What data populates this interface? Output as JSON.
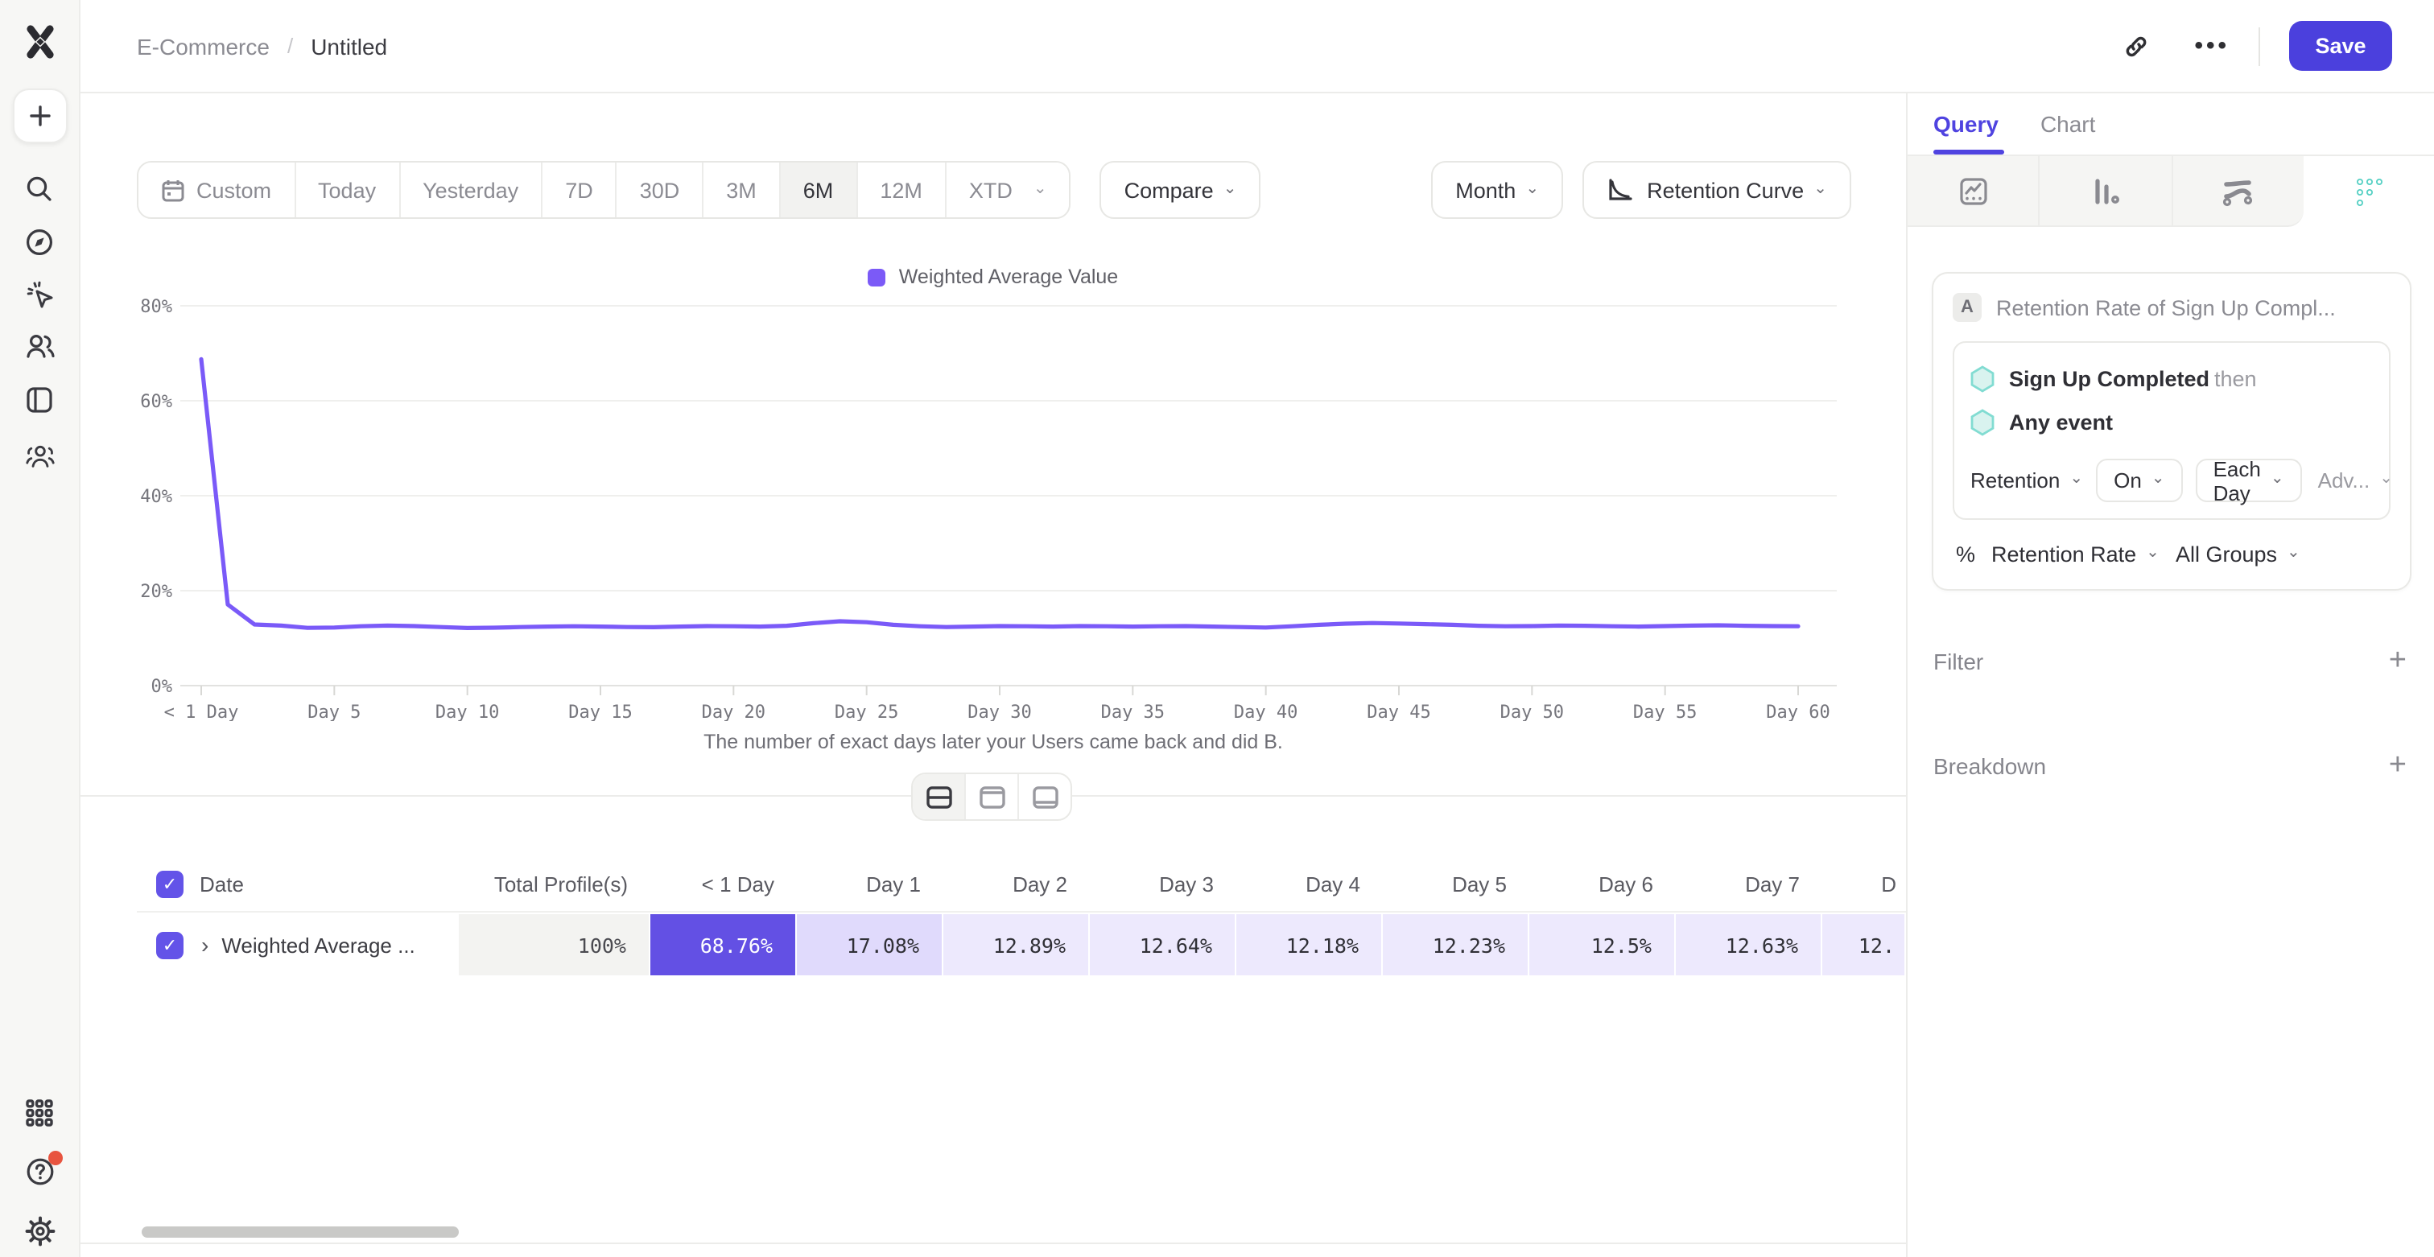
{
  "header": {
    "breadcrumb": {
      "root": "E-Commerce",
      "sep": "/",
      "leaf": "Untitled"
    },
    "save_label": "Save"
  },
  "toolbar": {
    "date_ranges": [
      "Custom",
      "Today",
      "Yesterday",
      "7D",
      "30D",
      "3M",
      "6M",
      "12M",
      "XTD"
    ],
    "selected_range": "6M",
    "compare_label": "Compare",
    "granularity_label": "Month",
    "chart_type_label": "Retention Curve"
  },
  "legend": {
    "label": "Weighted Average Value",
    "color": "#7b5af7"
  },
  "chart_data": {
    "type": "line",
    "series_name": "Weighted Average Value",
    "x_days": [
      0,
      1,
      2,
      3,
      4,
      5,
      6,
      7,
      8,
      9,
      10,
      11,
      12,
      13,
      14,
      15,
      16,
      17,
      18,
      19,
      20,
      21,
      22,
      23,
      24,
      25,
      26,
      27,
      28,
      29,
      30,
      31,
      32,
      33,
      34,
      35,
      36,
      37,
      38,
      39,
      40,
      41,
      42,
      43,
      44,
      45,
      46,
      47,
      48,
      49,
      50,
      51,
      52,
      53,
      54,
      55,
      56,
      57,
      58,
      59,
      60
    ],
    "values": [
      68.76,
      17.08,
      12.89,
      12.64,
      12.18,
      12.23,
      12.5,
      12.63,
      12.55,
      12.35,
      12.15,
      12.2,
      12.35,
      12.45,
      12.5,
      12.45,
      12.35,
      12.3,
      12.45,
      12.55,
      12.5,
      12.45,
      12.6,
      13.15,
      13.55,
      13.35,
      12.8,
      12.5,
      12.35,
      12.45,
      12.55,
      12.5,
      12.45,
      12.55,
      12.5,
      12.45,
      12.5,
      12.55,
      12.45,
      12.35,
      12.25,
      12.5,
      12.8,
      13.05,
      13.2,
      13.1,
      12.95,
      12.8,
      12.6,
      12.5,
      12.55,
      12.65,
      12.6,
      12.5,
      12.45,
      12.55,
      12.65,
      12.7,
      12.6,
      12.55,
      12.5
    ],
    "ylim": [
      0,
      80
    ],
    "yticks": [
      0,
      20,
      40,
      60,
      80
    ],
    "ytick_suffix": "%",
    "xtick_days": [
      0,
      5,
      10,
      15,
      20,
      25,
      30,
      35,
      40,
      45,
      50,
      55,
      60
    ],
    "xtick_labels": [
      "< 1 Day",
      "Day 5",
      "Day 10",
      "Day 15",
      "Day 20",
      "Day 25",
      "Day 30",
      "Day 35",
      "Day 40",
      "Day 45",
      "Day 50",
      "Day 55",
      "Day 60"
    ],
    "caption": "The number of exact days later your Users came back and did B.",
    "line_color": "#7a5af8",
    "grid": true,
    "legend_position": "top-center"
  },
  "table": {
    "headers": [
      "Date",
      "Total Profile(s)",
      "< 1 Day",
      "Day 1",
      "Day 2",
      "Day 3",
      "Day 4",
      "Day 5",
      "Day 6",
      "Day 7",
      "D"
    ],
    "row": {
      "label": "Weighted Average ...",
      "values": [
        "100%",
        "68.76%",
        "17.08%",
        "12.89%",
        "12.64%",
        "12.18%",
        "12.23%",
        "12.5%",
        "12.63%",
        "12."
      ]
    }
  },
  "layout_toggles": [
    "split-view",
    "chart-view",
    "table-view"
  ],
  "panel": {
    "tabs": {
      "active": "Query",
      "inactive": "Chart"
    },
    "report_types": [
      "insights",
      "funnels",
      "flows",
      "retention"
    ],
    "active_report_type": "retention",
    "query": {
      "step_badge": "A",
      "name": "Retention Rate of Sign Up Compl...",
      "events": [
        {
          "name": "Sign Up Completed",
          "suffix": "then"
        },
        {
          "name": "Any event",
          "suffix": ""
        }
      ],
      "controls": {
        "mode": "Retention",
        "on": "On",
        "bucket": "Each Day",
        "advanced": "Adv..."
      },
      "measure": {
        "prefix": "%",
        "metric": "Retention Rate",
        "groups": "All Groups"
      }
    },
    "sections": {
      "filter": "Filter",
      "breakdown": "Breakdown"
    }
  },
  "sidebar_icons": [
    "mixpanel-logo",
    "create",
    "search",
    "discover",
    "activity",
    "users",
    "boards",
    "cohorts",
    "apps",
    "help",
    "settings"
  ],
  "colors": {
    "accent": "#4f43e0",
    "save_button": "#4b40dd",
    "line": "#7a5af8",
    "cell_solid": "#6350e4",
    "teal": "#56d0c4",
    "notification": "#e8543f"
  }
}
